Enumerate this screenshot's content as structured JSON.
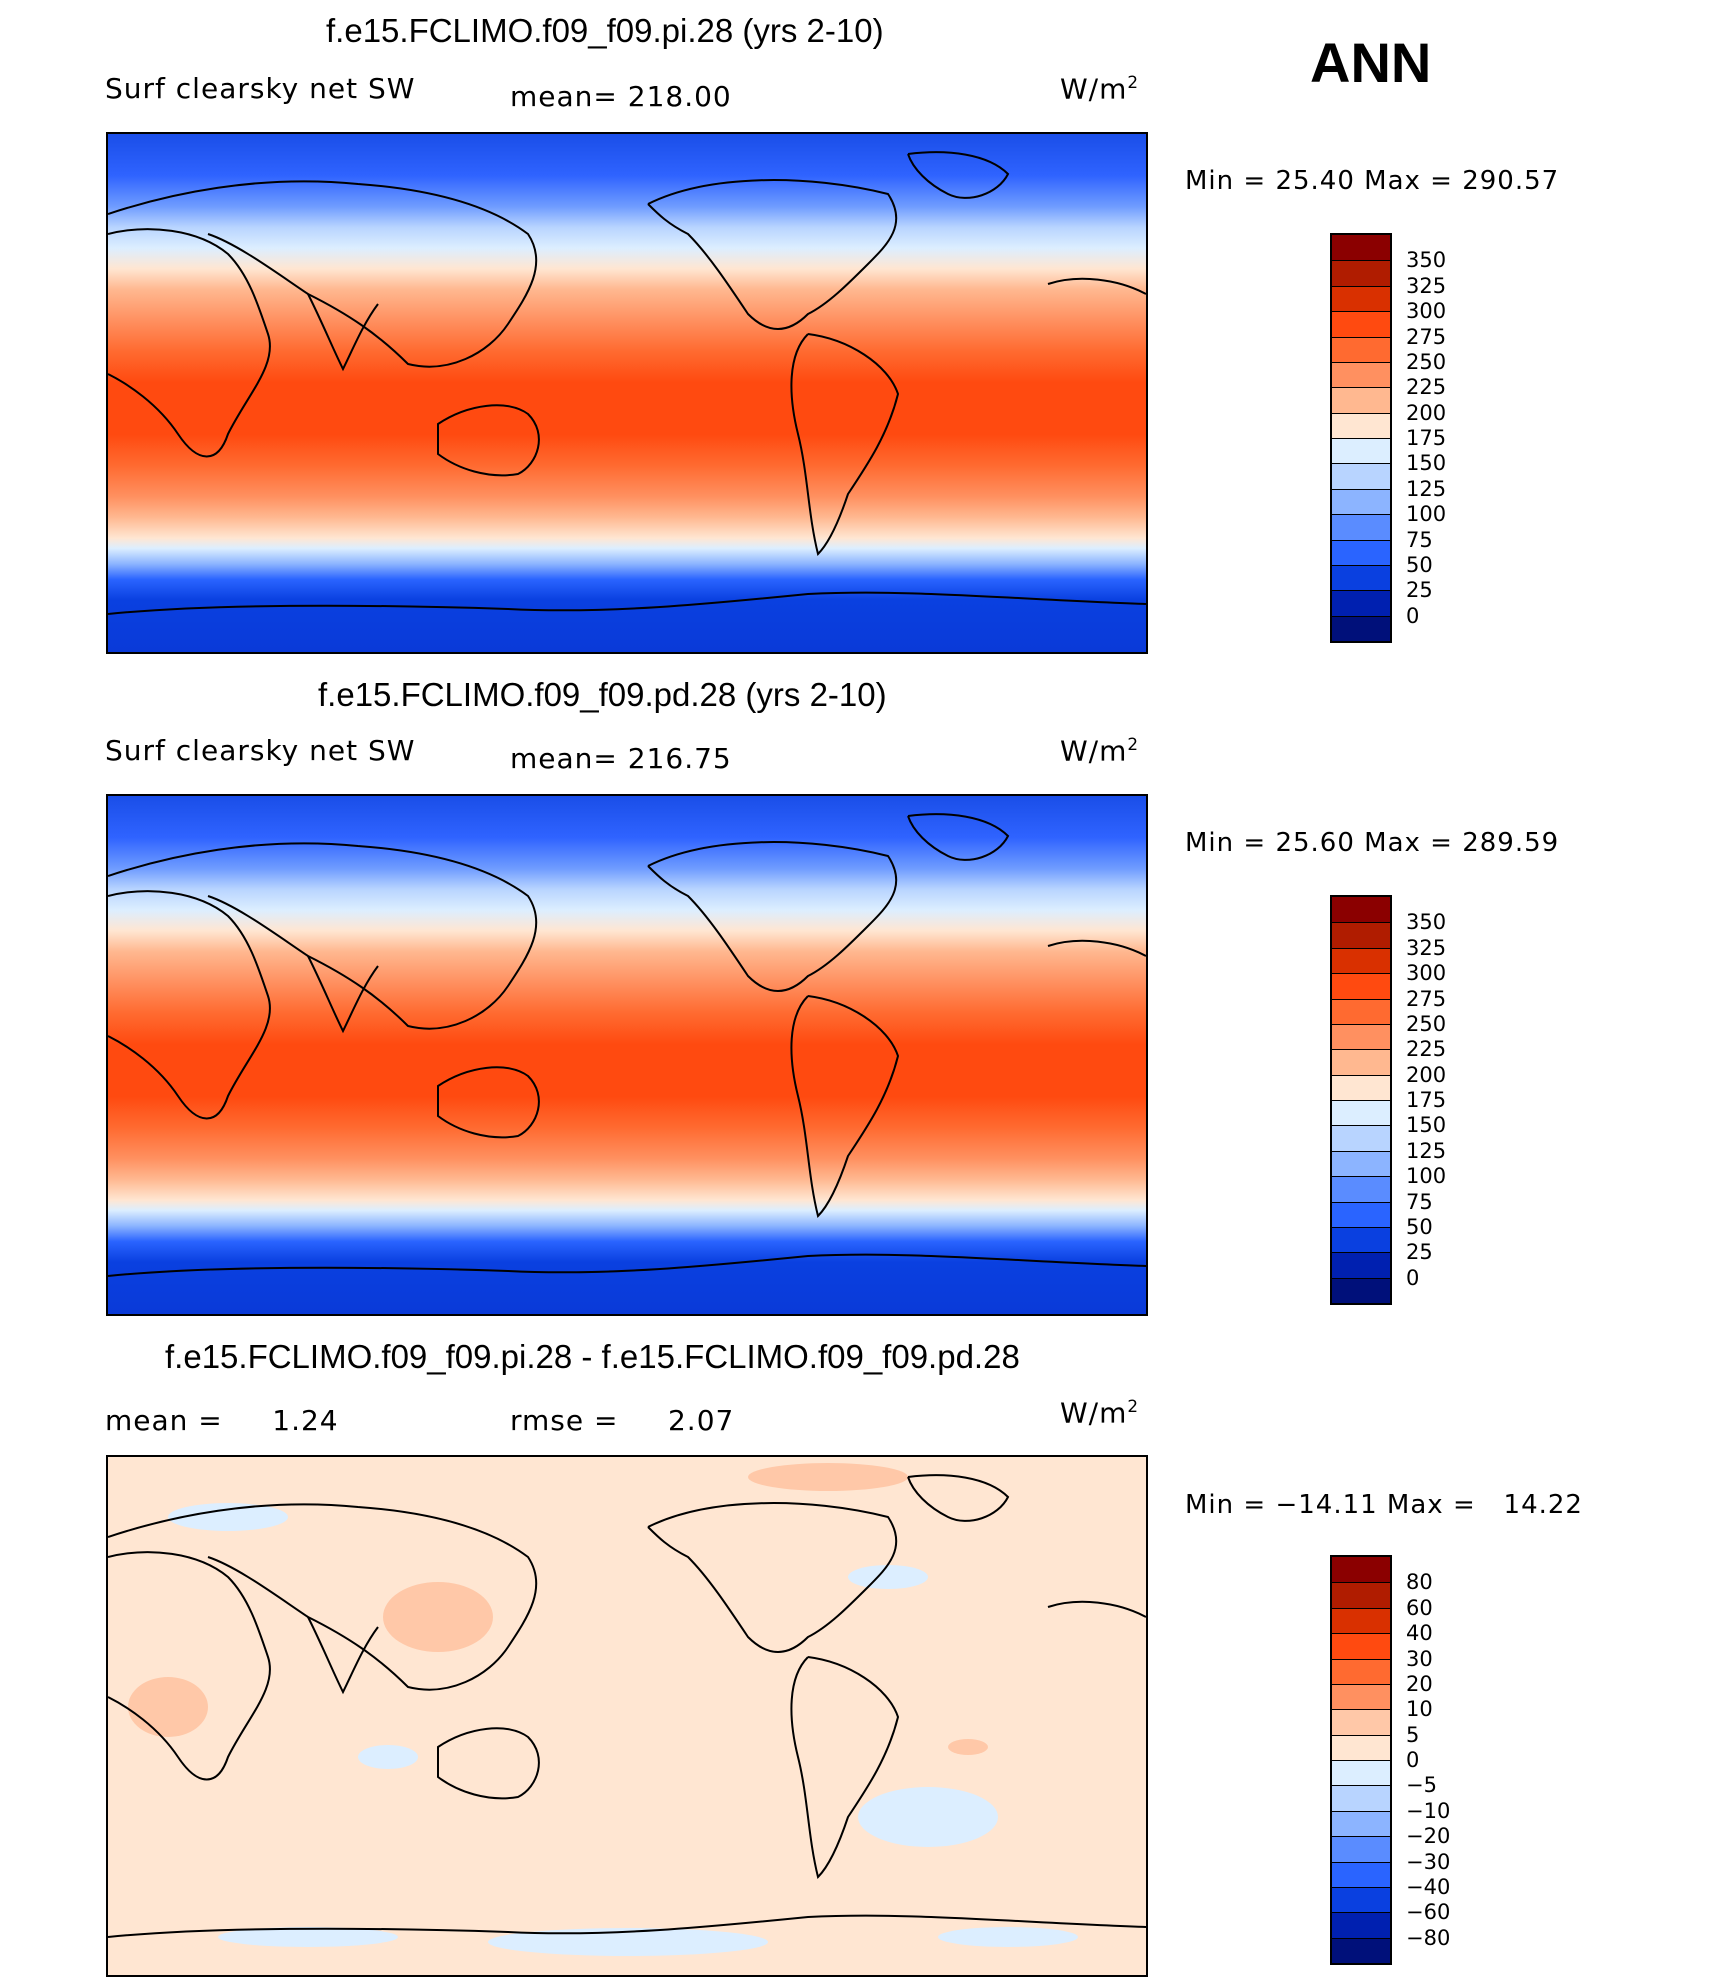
{
  "season": "ANN",
  "panels": [
    {
      "title": "f.e15.FCLIMO.f09_f09.pi.28 (yrs 2-10)",
      "left_label": "Surf clearsky net SW",
      "center_label": "mean= 218.00",
      "units": "W/m",
      "units_sup": "2",
      "min_max": "Min =   25.40 Max = 290.57",
      "colorbar_labels": [
        "350",
        "325",
        "300",
        "275",
        "250",
        "225",
        "200",
        "175",
        "150",
        "125",
        "100",
        "75",
        "50",
        "25",
        "0"
      ],
      "colorbar_colors": [
        "#8b0000",
        "#b01c00",
        "#d93000",
        "#ff4a10",
        "#ff6a30",
        "#ff9060",
        "#ffb890",
        "#ffe6d2",
        "#dceeff",
        "#b8d4ff",
        "#8cb4ff",
        "#5a8cff",
        "#2a64ff",
        "#0a40e0",
        "#0020b0",
        "#00107a"
      ]
    },
    {
      "title": "f.e15.FCLIMO.f09_f09.pd.28 (yrs 2-10)",
      "left_label": "Surf clearsky net SW",
      "center_label": "mean= 216.75",
      "units": "W/m",
      "units_sup": "2",
      "min_max": "Min =   25.60 Max = 289.59",
      "colorbar_labels": [
        "350",
        "325",
        "300",
        "275",
        "250",
        "225",
        "200",
        "175",
        "150",
        "125",
        "100",
        "75",
        "50",
        "25",
        "0"
      ],
      "colorbar_colors": [
        "#8b0000",
        "#b01c00",
        "#d93000",
        "#ff4a10",
        "#ff6a30",
        "#ff9060",
        "#ffb890",
        "#ffe6d2",
        "#dceeff",
        "#b8d4ff",
        "#8cb4ff",
        "#5a8cff",
        "#2a64ff",
        "#0a40e0",
        "#0020b0",
        "#00107a"
      ]
    },
    {
      "title": "f.e15.FCLIMO.f09_f09.pi.28 - f.e15.FCLIMO.f09_f09.pd.28",
      "left_label": "mean =     1.24",
      "center_label": "rmse =     2.07",
      "units": "W/m",
      "units_sup": "2",
      "min_max": "Min = −14.11 Max =   14.22",
      "colorbar_labels": [
        "80",
        "60",
        "40",
        "30",
        "20",
        "10",
        "5",
        "0",
        "−5",
        "−10",
        "−20",
        "−30",
        "−40",
        "−60",
        "−80"
      ],
      "colorbar_colors": [
        "#8b0000",
        "#b01c00",
        "#d93000",
        "#ff4a10",
        "#ff6a30",
        "#ff9060",
        "#ffc8a8",
        "#ffe6d2",
        "#dceeff",
        "#b8d4ff",
        "#8cb4ff",
        "#5a8cff",
        "#2a64ff",
        "#0a40e0",
        "#0020b0",
        "#00107a"
      ]
    }
  ],
  "chart_data": [
    {
      "type": "heatmap",
      "title": "f.e15.FCLIMO.f09_f09.pi.28 (yrs 2-10)",
      "variable": "Surf clearsky net SW",
      "units": "W/m2",
      "mean": 218.0,
      "min": 25.4,
      "max": 290.57,
      "contour_levels": [
        0,
        25,
        50,
        75,
        100,
        125,
        150,
        175,
        200,
        225,
        250,
        275,
        300,
        325,
        350
      ]
    },
    {
      "type": "heatmap",
      "title": "f.e15.FCLIMO.f09_f09.pd.28 (yrs 2-10)",
      "variable": "Surf clearsky net SW",
      "units": "W/m2",
      "mean": 216.75,
      "min": 25.6,
      "max": 289.59,
      "contour_levels": [
        0,
        25,
        50,
        75,
        100,
        125,
        150,
        175,
        200,
        225,
        250,
        275,
        300,
        325,
        350
      ]
    },
    {
      "type": "heatmap",
      "title": "f.e15.FCLIMO.f09_f09.pi.28 - f.e15.FCLIMO.f09_f09.pd.28",
      "units": "W/m2",
      "mean": 1.24,
      "rmse": 2.07,
      "min": -14.11,
      "max": 14.22,
      "contour_levels": [
        -80,
        -60,
        -40,
        -30,
        -20,
        -10,
        -5,
        0,
        5,
        10,
        20,
        30,
        40,
        60,
        80
      ]
    }
  ]
}
